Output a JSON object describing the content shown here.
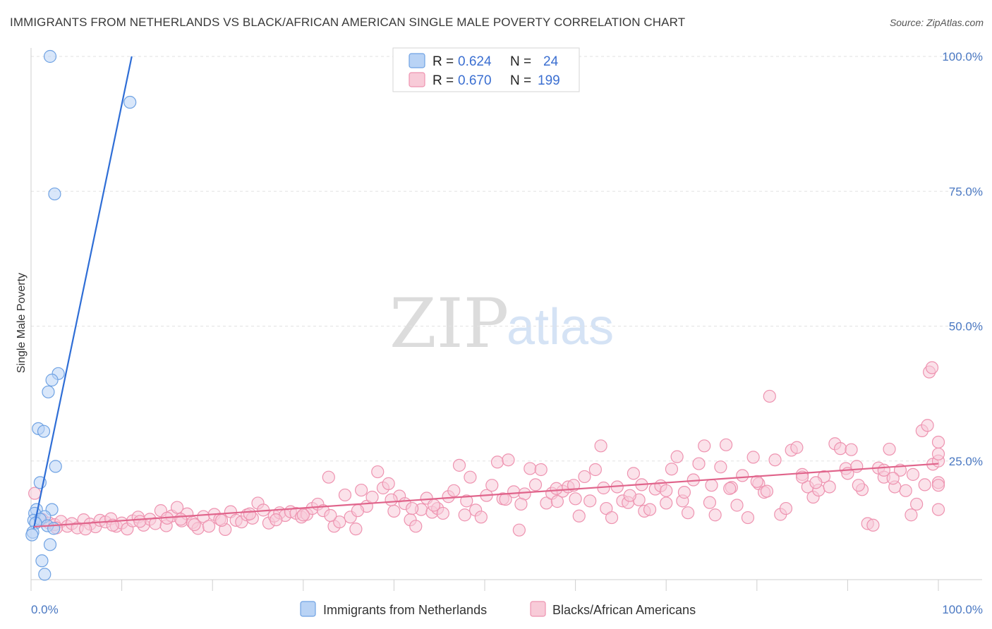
{
  "header": {
    "title": "IMMIGRANTS FROM NETHERLANDS VS BLACK/AFRICAN AMERICAN SINGLE MALE POVERTY CORRELATION CHART",
    "source": "Source: ZipAtlas.com"
  },
  "watermark": {
    "part1": "ZIP",
    "part2": "atlas"
  },
  "legend_box": {
    "rows": [
      {
        "r_label": "R =",
        "r_value": "0.624",
        "n_label": "N =",
        "n_value": "24",
        "color": "#a9c9f3"
      },
      {
        "r_label": "R =",
        "r_value": "0.670",
        "n_label": "N =",
        "n_value": "199",
        "color": "#f5b8cb"
      }
    ]
  },
  "chart_data": {
    "type": "scatter",
    "ylabel": "Single Male Poverty",
    "xlim": [
      0,
      100
    ],
    "ylim": [
      0,
      100
    ],
    "x_tick_labels": [
      "0.0%",
      "100.0%"
    ],
    "y_ticks": [
      25,
      50,
      75,
      100
    ],
    "y_tick_labels": [
      "25.0%",
      "50.0%",
      "75.0%",
      "100.0%"
    ],
    "grid": true,
    "legend_position": "bottom",
    "series": [
      {
        "name": "Immigrants from Netherlands",
        "color": "#6fa2e3",
        "fill": "#b9d3f5",
        "trend_color": "#2f6ed6",
        "trendline": {
          "x": [
            0.3,
            11.1
          ],
          "y": [
            12.5,
            100
          ]
        },
        "points": [
          [
            2.1,
            100
          ],
          [
            10.9,
            91.5
          ],
          [
            2.6,
            74.5
          ],
          [
            3.0,
            41.2
          ],
          [
            2.3,
            40.0
          ],
          [
            1.9,
            37.8
          ],
          [
            0.8,
            31.0
          ],
          [
            1.4,
            30.5
          ],
          [
            2.7,
            24.0
          ],
          [
            1.0,
            21.0
          ],
          [
            0.6,
            16.0
          ],
          [
            2.3,
            16.0
          ],
          [
            0.4,
            15.3
          ],
          [
            1.5,
            14.7
          ],
          [
            0.3,
            14.0
          ],
          [
            1.0,
            14.2
          ],
          [
            0.5,
            13.5
          ],
          [
            1.8,
            13.0
          ],
          [
            2.5,
            12.5
          ],
          [
            0.2,
            11.8
          ],
          [
            0.1,
            11.3
          ],
          [
            2.1,
            9.5
          ],
          [
            1.2,
            6.5
          ],
          [
            1.5,
            4.0
          ]
        ]
      },
      {
        "name": "Blacks/African Americans",
        "color": "#ee93b0",
        "fill": "#f8cbd8",
        "trend_color": "#e0648b",
        "trendline": {
          "x": [
            0.3,
            100
          ],
          "y": [
            12.8,
            24.5
          ]
        },
        "points": [
          [
            0.4,
            19.0
          ],
          [
            1.2,
            14.2
          ],
          [
            2.0,
            13.5
          ],
          [
            2.6,
            13.2
          ],
          [
            3.3,
            13.8
          ],
          [
            4.0,
            12.9
          ],
          [
            4.5,
            13.4
          ],
          [
            5.1,
            12.6
          ],
          [
            5.8,
            14.1
          ],
          [
            6.5,
            13.3
          ],
          [
            7.1,
            12.8
          ],
          [
            7.6,
            14.0
          ],
          [
            8.2,
            13.7
          ],
          [
            8.8,
            14.3
          ],
          [
            9.4,
            12.9
          ],
          [
            10.0,
            13.5
          ],
          [
            10.6,
            12.4
          ],
          [
            11.2,
            13.9
          ],
          [
            11.8,
            14.6
          ],
          [
            12.4,
            13.1
          ],
          [
            13.1,
            14.2
          ],
          [
            13.7,
            13.4
          ],
          [
            14.3,
            15.8
          ],
          [
            14.9,
            13.0
          ],
          [
            15.5,
            14.8
          ],
          [
            16.1,
            16.4
          ],
          [
            16.6,
            13.9
          ],
          [
            17.2,
            15.2
          ],
          [
            17.8,
            13.6
          ],
          [
            18.4,
            12.5
          ],
          [
            19.0,
            14.7
          ],
          [
            19.6,
            12.9
          ],
          [
            20.2,
            15.1
          ],
          [
            20.8,
            14.2
          ],
          [
            21.4,
            12.3
          ],
          [
            22.0,
            15.6
          ],
          [
            22.6,
            14.0
          ],
          [
            23.2,
            13.7
          ],
          [
            23.8,
            15.0
          ],
          [
            24.4,
            14.4
          ],
          [
            25.0,
            17.2
          ],
          [
            25.6,
            15.9
          ],
          [
            26.2,
            13.5
          ],
          [
            26.8,
            14.8
          ],
          [
            27.4,
            15.4
          ],
          [
            28.0,
            14.9
          ],
          [
            28.6,
            15.6
          ],
          [
            29.2,
            15.3
          ],
          [
            29.8,
            14.6
          ],
          [
            30.4,
            15.1
          ],
          [
            31.0,
            16.2
          ],
          [
            31.6,
            17.0
          ],
          [
            32.2,
            15.8
          ],
          [
            32.8,
            22.0
          ],
          [
            33.4,
            12.9
          ],
          [
            34.0,
            13.7
          ],
          [
            34.6,
            18.7
          ],
          [
            35.2,
            14.6
          ],
          [
            35.8,
            12.4
          ],
          [
            36.4,
            19.6
          ],
          [
            37.0,
            16.6
          ],
          [
            37.6,
            18.3
          ],
          [
            38.2,
            23.0
          ],
          [
            38.8,
            20.0
          ],
          [
            39.4,
            20.8
          ],
          [
            40.0,
            15.7
          ],
          [
            40.6,
            18.5
          ],
          [
            41.2,
            17.1
          ],
          [
            41.8,
            14.1
          ],
          [
            42.4,
            12.9
          ],
          [
            43.0,
            16.0
          ],
          [
            43.6,
            18.1
          ],
          [
            44.2,
            15.5
          ],
          [
            44.8,
            16.2
          ],
          [
            45.4,
            15.3
          ],
          [
            46.0,
            18.4
          ],
          [
            46.6,
            19.5
          ],
          [
            47.2,
            24.2
          ],
          [
            47.8,
            15.0
          ],
          [
            48.4,
            22.0
          ],
          [
            49.0,
            15.9
          ],
          [
            49.6,
            14.6
          ],
          [
            50.2,
            18.6
          ],
          [
            50.8,
            20.5
          ],
          [
            51.4,
            24.8
          ],
          [
            52.0,
            18.0
          ],
          [
            52.6,
            25.2
          ],
          [
            53.2,
            19.3
          ],
          [
            53.8,
            12.2
          ],
          [
            54.4,
            18.9
          ],
          [
            55.0,
            23.6
          ],
          [
            55.6,
            20.6
          ],
          [
            56.2,
            23.4
          ],
          [
            56.8,
            17.2
          ],
          [
            57.4,
            19.0
          ],
          [
            58.0,
            17.5
          ],
          [
            58.6,
            19.4
          ],
          [
            59.2,
            20.2
          ],
          [
            59.8,
            20.5
          ],
          [
            60.4,
            14.8
          ],
          [
            61.0,
            22.1
          ],
          [
            61.6,
            17.6
          ],
          [
            62.2,
            23.4
          ],
          [
            62.8,
            27.8
          ],
          [
            63.4,
            16.2
          ],
          [
            64.0,
            14.5
          ],
          [
            64.6,
            20.2
          ],
          [
            65.2,
            17.6
          ],
          [
            65.8,
            17.3
          ],
          [
            66.4,
            22.7
          ],
          [
            67.0,
            17.8
          ],
          [
            67.6,
            15.7
          ],
          [
            68.2,
            16.0
          ],
          [
            68.8,
            19.8
          ],
          [
            69.4,
            20.4
          ],
          [
            70.0,
            17.2
          ],
          [
            70.6,
            23.5
          ],
          [
            71.2,
            25.8
          ],
          [
            71.8,
            17.6
          ],
          [
            72.4,
            15.4
          ],
          [
            73.0,
            21.5
          ],
          [
            73.6,
            24.5
          ],
          [
            74.2,
            27.8
          ],
          [
            74.8,
            17.3
          ],
          [
            75.4,
            15.0
          ],
          [
            76.0,
            23.9
          ],
          [
            76.6,
            28.0
          ],
          [
            77.2,
            20.1
          ],
          [
            77.8,
            16.8
          ],
          [
            78.4,
            22.3
          ],
          [
            79.0,
            14.5
          ],
          [
            79.6,
            25.7
          ],
          [
            80.2,
            20.8
          ],
          [
            80.8,
            19.2
          ],
          [
            81.4,
            37.0
          ],
          [
            82.0,
            25.2
          ],
          [
            82.6,
            15.1
          ],
          [
            83.2,
            16.2
          ],
          [
            83.8,
            27.0
          ],
          [
            84.4,
            27.5
          ],
          [
            85.0,
            22.5
          ],
          [
            85.6,
            20.2
          ],
          [
            86.2,
            18.3
          ],
          [
            86.8,
            19.6
          ],
          [
            87.4,
            22.1
          ],
          [
            88.0,
            20.2
          ],
          [
            88.6,
            28.2
          ],
          [
            89.2,
            27.3
          ],
          [
            89.8,
            23.6
          ],
          [
            90.4,
            27.1
          ],
          [
            91.0,
            24.0
          ],
          [
            91.6,
            19.7
          ],
          [
            92.2,
            13.4
          ],
          [
            92.8,
            13.1
          ],
          [
            93.4,
            23.7
          ],
          [
            94.0,
            22.0
          ],
          [
            94.6,
            27.2
          ],
          [
            95.2,
            20.2
          ],
          [
            95.8,
            23.3
          ],
          [
            96.4,
            19.5
          ],
          [
            97.0,
            15.0
          ],
          [
            97.6,
            17.0
          ],
          [
            98.2,
            30.6
          ],
          [
            98.8,
            31.6
          ],
          [
            99.4,
            24.4
          ],
          [
            100.0,
            28.5
          ],
          [
            16.5,
            14.2
          ],
          [
            24.1,
            15.2
          ],
          [
            33.0,
            14.9
          ],
          [
            39.7,
            17.8
          ],
          [
            44.4,
            16.8
          ],
          [
            52.3,
            17.9
          ],
          [
            57.9,
            19.9
          ],
          [
            63.1,
            20.0
          ],
          [
            67.3,
            20.6
          ],
          [
            72.0,
            19.2
          ],
          [
            77.0,
            19.9
          ],
          [
            81.1,
            19.4
          ],
          [
            86.5,
            21.0
          ],
          [
            91.2,
            20.5
          ],
          [
            95.0,
            21.8
          ],
          [
            97.2,
            22.5
          ],
          [
            98.5,
            20.6
          ],
          [
            99.0,
            41.5
          ],
          [
            99.3,
            42.3
          ],
          [
            100.0,
            25.0
          ],
          [
            100.0,
            26.3
          ],
          [
            100.0,
            21.0
          ],
          [
            100.0,
            16.0
          ],
          [
            100.0,
            20.5
          ],
          [
            6.0,
            12.4
          ],
          [
            9.0,
            13.1
          ],
          [
            12.0,
            13.8
          ],
          [
            15.0,
            14.4
          ],
          [
            18.0,
            13.2
          ],
          [
            21.0,
            14.0
          ],
          [
            27.0,
            14.1
          ],
          [
            30.0,
            15.0
          ],
          [
            36.0,
            15.8
          ],
          [
            42.0,
            16.2
          ],
          [
            48.0,
            17.6
          ],
          [
            54.0,
            17.0
          ],
          [
            60.0,
            18.0
          ],
          [
            66.0,
            18.6
          ],
          [
            70.0,
            19.5
          ],
          [
            75.0,
            20.5
          ],
          [
            80.0,
            21.2
          ],
          [
            85.0,
            22.0
          ],
          [
            90.0,
            22.7
          ],
          [
            94.0,
            23.3
          ],
          [
            2.8,
            12.6
          ]
        ]
      }
    ]
  }
}
